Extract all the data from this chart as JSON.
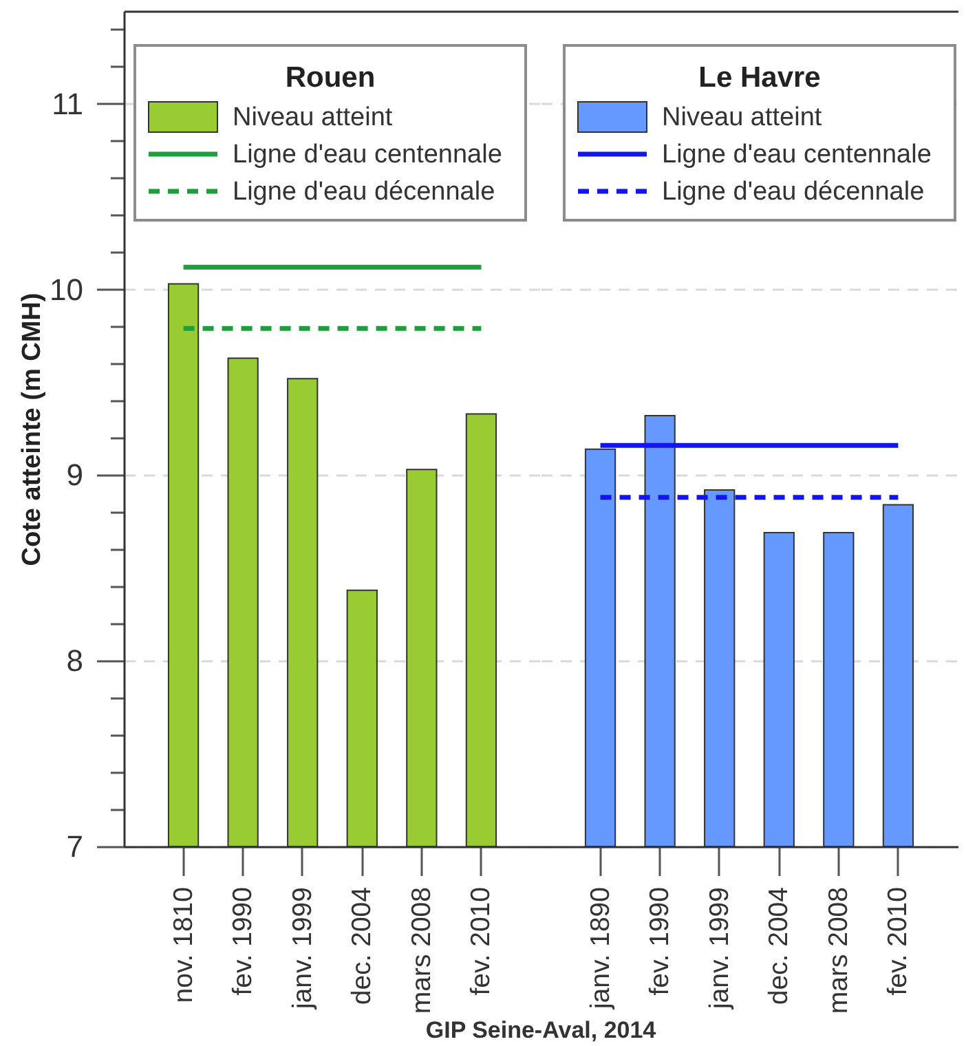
{
  "chart_data": [
    {
      "type": "bar",
      "legend_title": "Rouen",
      "ylabel": "Cote atteinte (m CMH)",
      "legend": "top left",
      "grid": "y",
      "categories": [
        "nov. 1810",
        "fev. 1990",
        "janv. 1999",
        "dec. 2004",
        "mars 2008",
        "fev. 2010"
      ],
      "series": [
        {
          "name": "Niveau atteint",
          "color": "#99cc33",
          "values": [
            10.03,
            9.63,
            9.52,
            8.38,
            9.03,
            9.33
          ]
        },
        {
          "name": "Ligne d'eau centennale",
          "type": "line",
          "line_style": "solid",
          "color": "#1f9e3c",
          "values": [
            10.12,
            10.12,
            10.12,
            10.12,
            10.12,
            10.12
          ]
        },
        {
          "name": "Ligne d'eau décennale",
          "type": "line",
          "line_style": "dashed",
          "color": "#1f9e3c",
          "values": [
            9.79,
            9.79,
            9.79,
            9.79,
            9.79,
            9.79
          ]
        }
      ],
      "ylim": [
        7,
        11.5
      ],
      "yticks": [
        7,
        {
          "value": 7.2,
          "label": null
        },
        {
          "value": 7.4,
          "label": null
        },
        {
          "value": 7.6,
          "label": null
        },
        {
          "value": 7.8,
          "label": null
        },
        8,
        {
          "value": 8.2,
          "label": null
        },
        {
          "value": 8.4,
          "label": null
        },
        {
          "value": 8.6,
          "label": null
        },
        {
          "value": 8.8,
          "label": null
        },
        9,
        {
          "value": 9.2,
          "label": null
        },
        {
          "value": 9.4,
          "label": null
        },
        {
          "value": 9.6,
          "label": null
        },
        {
          "value": 9.8,
          "label": null
        },
        10,
        {
          "value": 10.2,
          "label": null
        },
        {
          "value": 10.4,
          "label": null
        },
        {
          "value": 10.6,
          "label": null
        },
        {
          "value": 10.8,
          "label": null
        },
        11,
        {
          "value": 11.2,
          "label": null
        },
        {
          "value": 11.4,
          "label": null
        }
      ],
      "annotations": [
        "GIP Seine-Aval, 2014"
      ]
    },
    {
      "type": "bar",
      "legend_title": "Le Havre",
      "legend": "top right",
      "grid": "y",
      "tick_labels": "x",
      "categories": [
        "janv. 1890",
        "fev. 1990",
        "janv. 1999",
        "dec. 2004",
        "mars 2008",
        "fev. 2010"
      ],
      "series": [
        {
          "name": "Niveau atteint",
          "color": "#6699ff",
          "values": [
            9.14,
            9.32,
            8.92,
            8.69,
            8.69,
            8.84
          ]
        },
        {
          "name": "Ligne d'eau centennale",
          "type": "line",
          "line_style": "solid",
          "color": "#1414ee",
          "values": [
            9.16,
            9.16,
            9.16,
            9.16,
            9.16,
            9.16
          ]
        },
        {
          "name": "Ligne d'eau décennale",
          "type": "line",
          "line_style": "dashed",
          "color": "#1414ee",
          "values": [
            8.88,
            8.88,
            8.88,
            8.88,
            8.88,
            8.88
          ]
        }
      ],
      "ylim": [
        7,
        11.5
      ],
      "yticks": [
        7,
        8,
        9,
        10,
        11
      ]
    }
  ]
}
